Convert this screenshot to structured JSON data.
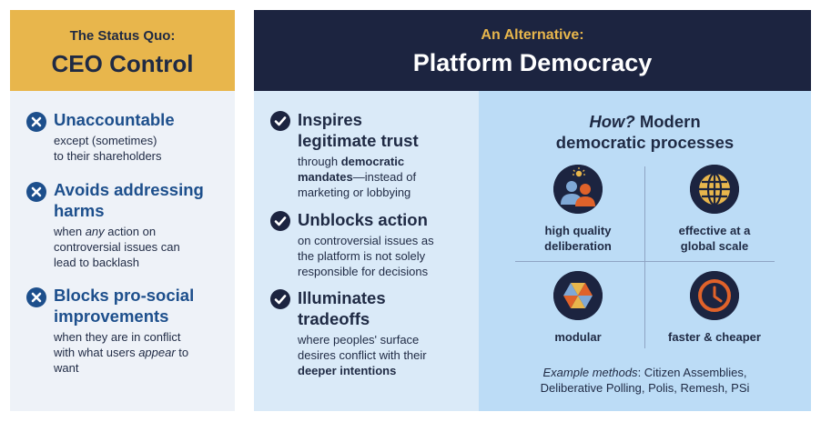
{
  "status_quo": {
    "subtitle": "The Status Quo:",
    "title": "CEO Control",
    "items": [
      {
        "title_lines": [
          "Unaccountable"
        ],
        "desc_lines": [
          "except (sometimes)",
          "to their shareholders"
        ]
      },
      {
        "title_lines": [
          "Avoids addressing",
          "harms"
        ],
        "desc_lines_html": [
          "when <i>any</i> action on",
          "controversial issues can",
          "lead to backlash"
        ]
      },
      {
        "title_lines": [
          "Blocks pro-social",
          "improvements"
        ],
        "desc_lines_html": [
          "when they are in conflict",
          "with what users <i>appear</i> to",
          "want"
        ]
      }
    ]
  },
  "alternative": {
    "subtitle": "An Alternative:",
    "title": "Platform Democracy",
    "items": [
      {
        "title_lines": [
          "Inspires",
          "legitimate trust"
        ],
        "desc_lines_html": [
          "through <b>democratic</b>",
          "<b>mandates</b>—instead of",
          "marketing or lobbying"
        ]
      },
      {
        "title_lines": [
          "Unblocks action"
        ],
        "desc_lines": [
          "on controversial issues as",
          "the platform is not solely",
          "responsible for decisions"
        ]
      },
      {
        "title_lines": [
          "Illuminates",
          "tradeoffs"
        ],
        "desc_lines_html": [
          "where peoples' surface",
          "desires conflict with their",
          "<b>deeper intentions</b>"
        ]
      }
    ]
  },
  "how": {
    "title_q": "How?",
    "title_rest": "Modern",
    "title_line2": "democratic processes",
    "methods": [
      {
        "icon": "people-lightbulb-icon",
        "label_lines": [
          "high quality",
          "deliberation"
        ]
      },
      {
        "icon": "globe-icon",
        "label_lines": [
          "effective at a",
          "global scale"
        ]
      },
      {
        "icon": "modular-triangles-icon",
        "label_lines": [
          "modular"
        ]
      },
      {
        "icon": "clock-icon",
        "label_lines": [
          "faster & cheaper"
        ]
      }
    ],
    "examples_label": "Example methods",
    "examples_line1": ": Citizen Assemblies,",
    "examples_line2": "Deliberative Polling, Polis, Remesh, PSi"
  },
  "colors": {
    "gold": "#e8b64c",
    "navy": "#1c2440",
    "blue_title": "#1d4f8c",
    "orange": "#e0622a"
  }
}
